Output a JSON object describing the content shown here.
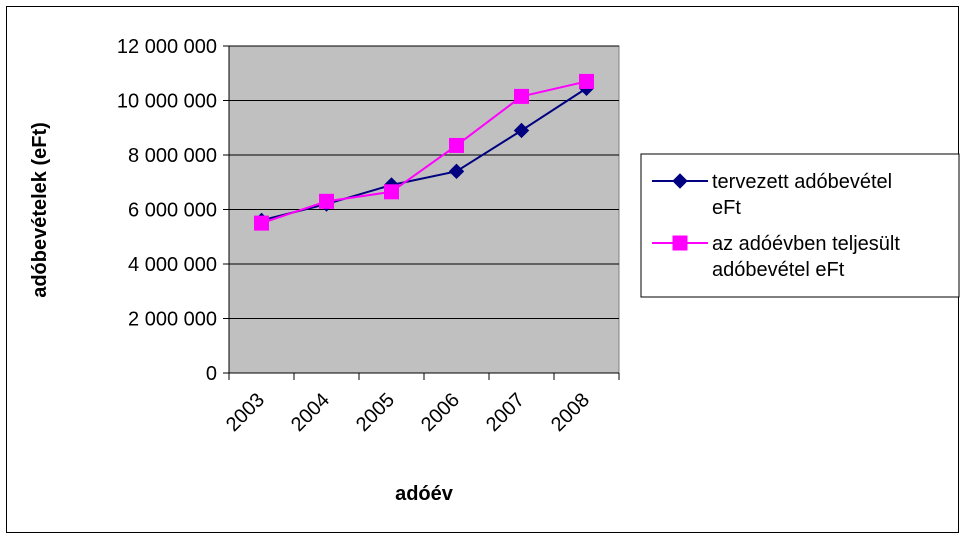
{
  "chart_data": {
    "type": "line",
    "x": [
      "2003",
      "2004",
      "2005",
      "2006",
      "2007",
      "2008"
    ],
    "xlabel": "adóév",
    "ylabel": "adóbevételek (eFt)",
    "ylim": [
      0,
      12000000
    ],
    "yticks": [
      0,
      2000000,
      4000000,
      6000000,
      8000000,
      10000000,
      12000000
    ],
    "ytick_labels": [
      "0",
      "2 000 000",
      "4 000 000",
      "6 000 000",
      "8 000 000",
      "10 000 000",
      "12 000 000"
    ],
    "grid": true,
    "plot_background": "#C0C0C0",
    "legend_position": "right",
    "series": [
      {
        "name": "tervezett adóbevétel eFt",
        "name_lines": [
          "tervezett adóbevétel",
          "eFt"
        ],
        "color": "#000080",
        "marker": "diamond",
        "values": [
          5600000,
          6200000,
          6900000,
          7400000,
          8900000,
          10450000
        ]
      },
      {
        "name": "az adóévben teljesült adóbevétel eFt",
        "name_lines": [
          "az adóévben teljesült",
          "adóbevétel eFt"
        ],
        "color": "#FF00FF",
        "marker": "square",
        "values": [
          5500000,
          6300000,
          6650000,
          8350000,
          10150000,
          10700000
        ]
      }
    ]
  }
}
